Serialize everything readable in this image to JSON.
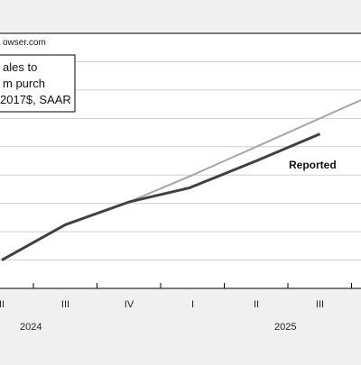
{
  "chart_data": {
    "type": "line",
    "watermark": "owser.com",
    "legend_text": [
      "ales to",
      "m purch",
      "2017$, SAAR"
    ],
    "x_tick_labels": [
      "II",
      "III",
      "IV",
      "I",
      "II",
      "III"
    ],
    "year_labels": [
      "2024",
      "2025"
    ],
    "series": [
      {
        "name": "Reported",
        "color": "#404040",
        "points": [
          [
            0,
            1.0
          ],
          [
            1,
            2.25
          ],
          [
            2,
            3.05
          ],
          [
            2.95,
            3.55
          ],
          [
            4.0,
            4.5
          ],
          [
            5.0,
            5.45
          ]
        ]
      },
      {
        "name": "",
        "color": "#a6a6a6",
        "points": [
          [
            2.0,
            3.05
          ],
          [
            3.0,
            4.0
          ],
          [
            4.0,
            5.0
          ],
          [
            5.0,
            6.0
          ],
          [
            5.7,
            6.7
          ]
        ]
      }
    ],
    "ylim": [
      0,
      9
    ],
    "grid": true
  }
}
